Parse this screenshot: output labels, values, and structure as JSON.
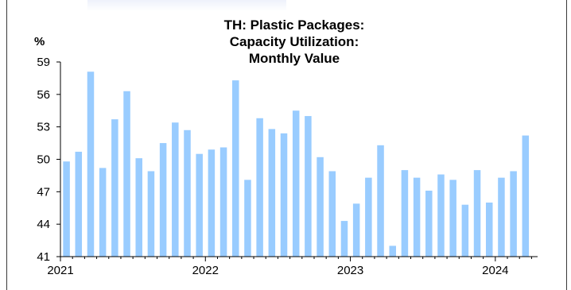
{
  "chart_data": {
    "type": "bar",
    "title_lines": [
      "TH: Plastic Packages:",
      "Capacity Utilization:",
      "Monthly Value"
    ],
    "ylabel": "%",
    "ylim": [
      41,
      59
    ],
    "yticks": [
      41,
      44,
      47,
      50,
      53,
      56,
      59
    ],
    "xtick_labels": [
      "2021",
      "2022",
      "2023",
      "2024"
    ],
    "bar_color": "#99ccff",
    "grid": false,
    "legend": "none",
    "categories": [
      "2021-01",
      "2021-02",
      "2021-03",
      "2021-04",
      "2021-05",
      "2021-06",
      "2021-07",
      "2021-08",
      "2021-09",
      "2021-10",
      "2021-11",
      "2021-12",
      "2022-01",
      "2022-02",
      "2022-03",
      "2022-04",
      "2022-05",
      "2022-06",
      "2022-07",
      "2022-08",
      "2022-09",
      "2022-10",
      "2022-11",
      "2022-12",
      "2023-01",
      "2023-02",
      "2023-03",
      "2023-04",
      "2023-05",
      "2023-06",
      "2023-07",
      "2023-08",
      "2023-09",
      "2023-10",
      "2023-11",
      "2023-12",
      "2024-01",
      "2024-02",
      "2024-03"
    ],
    "values": [
      49.8,
      50.7,
      58.1,
      49.2,
      53.7,
      56.3,
      50.1,
      48.9,
      51.5,
      53.4,
      52.7,
      50.5,
      50.9,
      51.1,
      57.3,
      48.1,
      53.8,
      52.8,
      52.4,
      54.5,
      54.0,
      50.2,
      48.9,
      44.3,
      45.9,
      48.3,
      51.3,
      42.0,
      49.0,
      48.3,
      47.1,
      48.6,
      48.1,
      45.8,
      49.0,
      46.0,
      48.3,
      48.9,
      52.2
    ]
  }
}
